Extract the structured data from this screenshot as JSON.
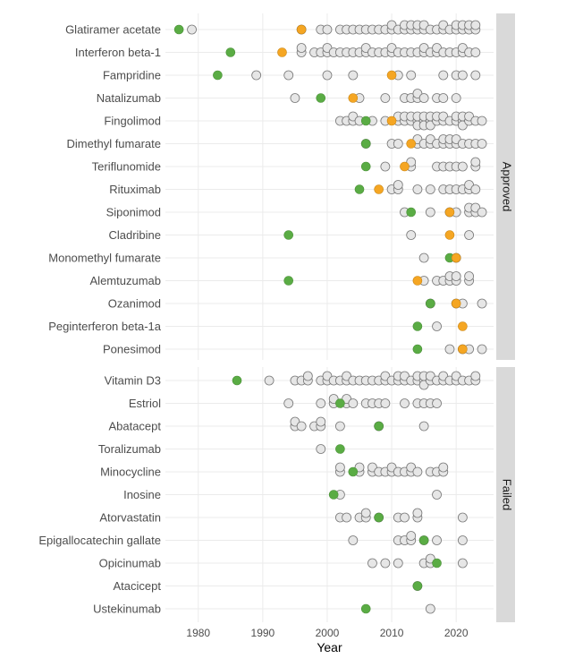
{
  "chart_data": {
    "type": "scatter",
    "xlabel": "Year",
    "xlim": [
      1974.9,
      2025.8
    ],
    "xticks": [
      1980,
      1990,
      2000,
      2010,
      2020
    ],
    "grid": true,
    "colors": {
      "first": "#5aac44",
      "approval": "#f5a623",
      "trial": "#e6e6e6",
      "trial_stroke": "#777777",
      "strip": "#d9d9d9"
    },
    "panels": [
      {
        "label": "Approved",
        "rows": [
          {
            "drug": "Glatiramer acetate",
            "green": 1977,
            "orange": 1996,
            "gray": [
              1979,
              1996,
              1999,
              2000,
              2002,
              2003,
              2004,
              2005,
              2006,
              2007,
              2008,
              2009,
              2010,
              2010,
              2011,
              2012,
              2012,
              2013,
              2013,
              2014,
              2014,
              2015,
              2015,
              2016,
              2017,
              2018,
              2018,
              2019,
              2020,
              2020,
              2021,
              2021,
              2022,
              2022,
              2023,
              2023
            ]
          },
          {
            "drug": "Interferon beta-1",
            "green": 1985,
            "orange": 1993,
            "gray": [
              1996,
              1996,
              1998,
              1999,
              2000,
              2000,
              2001,
              2002,
              2003,
              2004,
              2005,
              2006,
              2006,
              2007,
              2008,
              2009,
              2010,
              2010,
              2011,
              2012,
              2013,
              2014,
              2015,
              2015,
              2016,
              2017,
              2017,
              2018,
              2019,
              2020,
              2021,
              2021,
              2022,
              2023
            ]
          },
          {
            "drug": "Fampridine",
            "green": 1983,
            "orange": 2010,
            "gray": [
              1989,
              1994,
              2000,
              2004,
              2011,
              2013,
              2018,
              2020,
              2021,
              2023
            ]
          },
          {
            "drug": "Natalizumab",
            "green": 1999,
            "orange": 2004,
            "gray": [
              1995,
              2005,
              2009,
              2012,
              2013,
              2014,
              2014,
              2015,
              2017,
              2018,
              2020
            ]
          },
          {
            "drug": "Fingolimod",
            "green": 2006,
            "orange": 2010,
            "gray": [
              2002,
              2003,
              2004,
              2004,
              2005,
              2007,
              2009,
              2011,
              2011,
              2012,
              2012,
              2013,
              2013,
              2014,
              2014,
              2014,
              2015,
              2015,
              2015,
              2016,
              2016,
              2016,
              2017,
              2017,
              2018,
              2018,
              2019,
              2020,
              2020,
              2021,
              2021,
              2021,
              2022,
              2022,
              2023,
              2024
            ]
          },
          {
            "drug": "Dimethyl fumarate",
            "green": 2006,
            "orange": 2013,
            "gray": [
              2006,
              2010,
              2011,
              2014,
              2014,
              2015,
              2016,
              2016,
              2017,
              2018,
              2018,
              2019,
              2019,
              2020,
              2020,
              2021,
              2022,
              2023,
              2024
            ]
          },
          {
            "drug": "Teriflunomide",
            "green": 2006,
            "orange": 2012,
            "gray": [
              2009,
              2013,
              2013,
              2017,
              2018,
              2019,
              2020,
              2021,
              2023,
              2023
            ]
          },
          {
            "drug": "Rituximab",
            "green": 2005,
            "orange": 2008,
            "gray": [
              2010,
              2011,
              2011,
              2014,
              2016,
              2018,
              2019,
              2020,
              2021,
              2022,
              2022,
              2023
            ]
          },
          {
            "drug": "Siponimod",
            "green": 2013,
            "orange": 2019,
            "gray": [
              2012,
              2016,
              2019,
              2020,
              2022,
              2022,
              2023,
              2023,
              2024
            ]
          },
          {
            "drug": "Cladribine",
            "green": 1994,
            "orange": 2019,
            "gray": [
              2013,
              2022
            ]
          },
          {
            "drug": "Monomethyl fumarate",
            "green": 2019,
            "orange": 2020,
            "gray": [
              2015,
              2020
            ]
          },
          {
            "drug": "Alemtuzumab",
            "green": 1994,
            "orange": 2014,
            "gray": [
              2015,
              2017,
              2018,
              2019,
              2019,
              2020,
              2020,
              2022,
              2022
            ]
          },
          {
            "drug": "Ozanimod",
            "green": 2016,
            "orange": 2020,
            "gray": [
              2016,
              2020,
              2021,
              2024
            ]
          },
          {
            "drug": "Peginterferon beta-1a",
            "green": 2014,
            "orange": 2021,
            "gray": [
              2017
            ]
          },
          {
            "drug": "Ponesimod",
            "green": 2014,
            "orange": 2021,
            "gray": [
              2019,
              2021,
              2022,
              2024
            ]
          }
        ]
      },
      {
        "label": "Failed",
        "rows": [
          {
            "drug": "Vitamin D3",
            "green": 1986,
            "gray": [
              1991,
              1995,
              1996,
              1997,
              1997,
              1999,
              2000,
              2000,
              2001,
              2002,
              2003,
              2003,
              2004,
              2005,
              2006,
              2007,
              2008,
              2009,
              2009,
              2010,
              2011,
              2011,
              2012,
              2012,
              2013,
              2014,
              2014,
              2015,
              2015,
              2015,
              2016,
              2016,
              2017,
              2018,
              2018,
              2019,
              2020,
              2020,
              2021,
              2022,
              2023,
              2023
            ]
          },
          {
            "drug": "Estriol",
            "green": 2002,
            "gray": [
              1994,
              1999,
              2001,
              2001,
              2003,
              2003,
              2004,
              2006,
              2007,
              2008,
              2009,
              2012,
              2014,
              2015,
              2016,
              2017
            ]
          },
          {
            "drug": "Abatacept",
            "green": 2008,
            "gray": [
              1995,
              1995,
              1996,
              1998,
              1999,
              1999,
              2002,
              2008,
              2015
            ]
          },
          {
            "drug": "Toralizumab",
            "green": 2002,
            "gray": [
              1999
            ]
          },
          {
            "drug": "Minocycline",
            "green": 2004,
            "gray": [
              2002,
              2002,
              2005,
              2005,
              2007,
              2007,
              2008,
              2009,
              2010,
              2010,
              2011,
              2012,
              2013,
              2013,
              2014,
              2016,
              2017,
              2018,
              2018
            ]
          },
          {
            "drug": "Inosine",
            "green": 2001,
            "gray": [
              2002,
              2017
            ]
          },
          {
            "drug": "Atorvastatin",
            "green": 2008,
            "gray": [
              2002,
              2003,
              2005,
              2006,
              2006,
              2008,
              2011,
              2012,
              2014,
              2014,
              2021
            ]
          },
          {
            "drug": "Epigallocatechin gallate",
            "green": 2015,
            "gray": [
              2004,
              2011,
              2012,
              2013,
              2013,
              2015,
              2017,
              2021
            ]
          },
          {
            "drug": "Opicinumab",
            "green": 2017,
            "gray": [
              2007,
              2009,
              2011,
              2015,
              2016,
              2016,
              2021
            ]
          },
          {
            "drug": "Atacicept",
            "green": 2014,
            "gray": [
              2014
            ]
          },
          {
            "drug": "Ustekinumab",
            "green": 2006,
            "gray": [
              2016
            ]
          }
        ]
      }
    ]
  }
}
